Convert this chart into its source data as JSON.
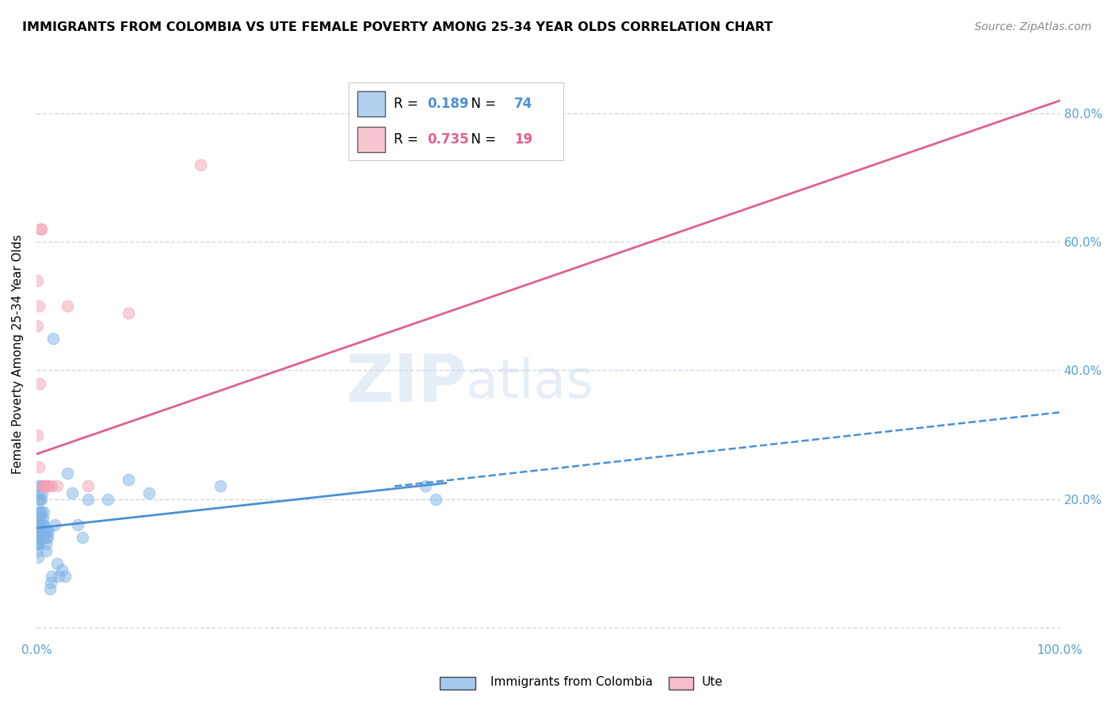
{
  "title": "IMMIGRANTS FROM COLOMBIA VS UTE FEMALE POVERTY AMONG 25-34 YEAR OLDS CORRELATION CHART",
  "source": "Source: ZipAtlas.com",
  "ylabel": "Female Poverty Among 25-34 Year Olds",
  "xlim": [
    0,
    1.0
  ],
  "ylim": [
    -0.02,
    0.87
  ],
  "xticks": [
    0.0,
    0.2,
    0.4,
    0.6,
    0.8,
    1.0
  ],
  "xticklabels": [
    "0.0%",
    "",
    "",
    "",
    "",
    "100.0%"
  ],
  "yticks": [
    0.0,
    0.2,
    0.4,
    0.6,
    0.8
  ],
  "yticklabels": [
    "",
    "20.0%",
    "40.0%",
    "60.0%",
    "80.0%"
  ],
  "colombia_color": "#7fb3e8",
  "ute_color": "#f4a0b5",
  "colombia_line_color": "#4a90d4",
  "ute_line_color": "#e06090",
  "colombia_scatter_alpha": 0.5,
  "ute_scatter_alpha": 0.5,
  "legend_R_colombia": "0.189",
  "legend_N_colombia": "74",
  "legend_R_ute": "0.735",
  "legend_N_ute": "19",
  "legend_label_colombia": "Immigrants from Colombia",
  "legend_label_ute": "Ute",
  "colombia_x": [
    0.0005,
    0.0006,
    0.0007,
    0.0008,
    0.0009,
    0.001,
    0.001,
    0.001,
    0.001,
    0.001,
    0.001,
    0.001,
    0.001,
    0.0012,
    0.0013,
    0.0014,
    0.0015,
    0.0016,
    0.0017,
    0.0018,
    0.002,
    0.002,
    0.002,
    0.0022,
    0.0023,
    0.0024,
    0.0025,
    0.003,
    0.003,
    0.003,
    0.0032,
    0.0034,
    0.004,
    0.004,
    0.004,
    0.0042,
    0.005,
    0.005,
    0.005,
    0.0052,
    0.006,
    0.006,
    0.0062,
    0.007,
    0.007,
    0.0072,
    0.008,
    0.0082,
    0.009,
    0.0092,
    0.01,
    0.0102,
    0.011,
    0.012,
    0.013,
    0.014,
    0.015,
    0.016,
    0.018,
    0.02,
    0.022,
    0.025,
    0.028,
    0.03,
    0.035,
    0.04,
    0.045,
    0.05,
    0.07,
    0.09,
    0.11,
    0.18,
    0.38,
    0.39
  ],
  "colombia_y": [
    0.14,
    0.15,
    0.13,
    0.16,
    0.14,
    0.15,
    0.16,
    0.13,
    0.14,
    0.15,
    0.12,
    0.14,
    0.16,
    0.15,
    0.13,
    0.14,
    0.11,
    0.15,
    0.16,
    0.14,
    0.17,
    0.18,
    0.13,
    0.14,
    0.2,
    0.21,
    0.22,
    0.15,
    0.14,
    0.16,
    0.18,
    0.2,
    0.17,
    0.22,
    0.16,
    0.15,
    0.14,
    0.18,
    0.2,
    0.21,
    0.15,
    0.16,
    0.17,
    0.18,
    0.22,
    0.16,
    0.14,
    0.15,
    0.13,
    0.12,
    0.14,
    0.15,
    0.14,
    0.15,
    0.06,
    0.07,
    0.08,
    0.45,
    0.16,
    0.1,
    0.08,
    0.09,
    0.08,
    0.24,
    0.21,
    0.16,
    0.14,
    0.2,
    0.2,
    0.23,
    0.21,
    0.22,
    0.22,
    0.2
  ],
  "ute_x": [
    0.0005,
    0.0007,
    0.001,
    0.002,
    0.0025,
    0.003,
    0.004,
    0.005,
    0.006,
    0.007,
    0.008,
    0.01,
    0.012,
    0.015,
    0.02,
    0.03,
    0.05,
    0.09,
    0.16
  ],
  "ute_y": [
    0.54,
    0.47,
    0.3,
    0.5,
    0.25,
    0.38,
    0.62,
    0.62,
    0.22,
    0.22,
    0.22,
    0.22,
    0.22,
    0.22,
    0.22,
    0.5,
    0.22,
    0.49,
    0.72
  ],
  "colombia_trend_x": [
    0.0,
    0.4
  ],
  "colombia_trend_y": [
    0.155,
    0.225
  ],
  "ute_trend_x": [
    0.0,
    1.0
  ],
  "ute_trend_y": [
    0.27,
    0.82
  ],
  "title_fontsize": 11.5,
  "axis_tick_color": "#5a9fd4",
  "axis_tick_fontsize": 11,
  "ylabel_fontsize": 11,
  "source_fontsize": 10,
  "background_color": "#ffffff",
  "grid_color": "#d0d8e8"
}
